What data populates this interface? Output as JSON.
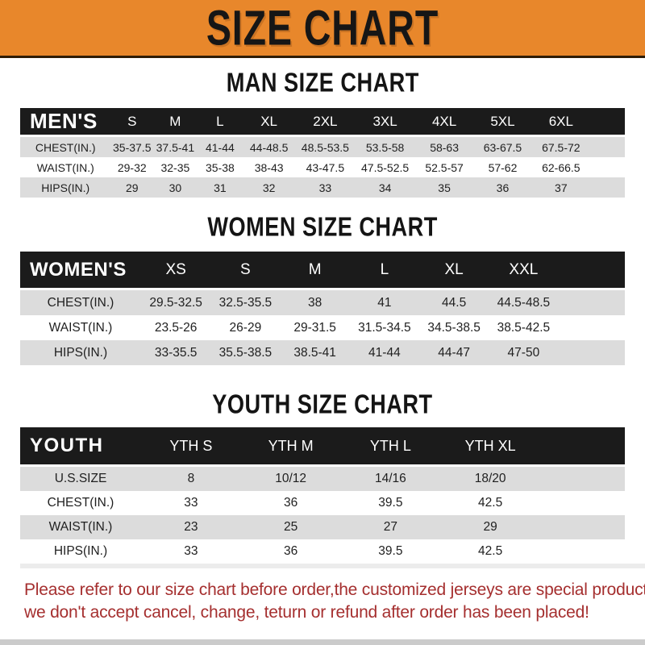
{
  "banner": {
    "title": "SIZE CHART"
  },
  "colors": {
    "banner_bg": "#E8872B",
    "table_header_bg": "#1B1B1B",
    "row_alt_bg": "#DCDCDC",
    "notice_text": "#A52F2F"
  },
  "sections": {
    "men": {
      "heading": "MAN SIZE CHART",
      "header_label": "MEN'S",
      "columns": [
        "S",
        "M",
        "L",
        "XL",
        "2XL",
        "3XL",
        "4XL",
        "5XL",
        "6XL"
      ],
      "rows": [
        {
          "label": "CHEST(IN.)",
          "values": [
            "35-37.5",
            "37.5-41",
            "41-44",
            "44-48.5",
            "48.5-53.5",
            "53.5-58",
            "58-63",
            "63-67.5",
            "67.5-72"
          ]
        },
        {
          "label": "WAIST(IN.)",
          "values": [
            "29-32",
            "32-35",
            "35-38",
            "38-43",
            "43-47.5",
            "47.5-52.5",
            "52.5-57",
            "57-62",
            "62-66.5"
          ]
        },
        {
          "label": "HIPS(IN.)",
          "values": [
            "29",
            "30",
            "31",
            "32",
            "33",
            "34",
            "35",
            "36",
            "37"
          ]
        }
      ]
    },
    "women": {
      "heading": "WOMEN SIZE CHART",
      "header_label": "WOMEN'S",
      "columns": [
        "XS",
        "S",
        "M",
        "L",
        "XL",
        "XXL"
      ],
      "rows": [
        {
          "label": "CHEST(IN.)",
          "values": [
            "29.5-32.5",
            "32.5-35.5",
            "38",
            "41",
            "44.5",
            "44.5-48.5"
          ]
        },
        {
          "label": "WAIST(IN.)",
          "values": [
            "23.5-26",
            "26-29",
            "29-31.5",
            "31.5-34.5",
            "34.5-38.5",
            "38.5-42.5"
          ]
        },
        {
          "label": "HIPS(IN.)",
          "values": [
            "33-35.5",
            "35.5-38.5",
            "38.5-41",
            "41-44",
            "44-47",
            "47-50"
          ]
        }
      ]
    },
    "youth": {
      "heading": "YOUTH SIZE CHART",
      "header_label": "YOUTH",
      "columns": [
        "YTH S",
        "YTH M",
        "YTH L",
        "YTH XL"
      ],
      "rows": [
        {
          "label": "U.S.SIZE",
          "values": [
            "8",
            "10/12",
            "14/16",
            "18/20"
          ]
        },
        {
          "label": "CHEST(IN.)",
          "values": [
            "33",
            "36",
            "39.5",
            "42.5"
          ]
        },
        {
          "label": "WAIST(IN.)",
          "values": [
            "23",
            "25",
            "27",
            "29"
          ]
        },
        {
          "label": "HIPS(IN.)",
          "values": [
            "33",
            "36",
            "39.5",
            "42.5"
          ]
        }
      ]
    }
  },
  "notice": {
    "lines": [
      "Please refer to our size chart before order,the customized jerseys are special products,",
      "we don't accept cancel, change, teturn or refund after order has been placed!"
    ]
  }
}
